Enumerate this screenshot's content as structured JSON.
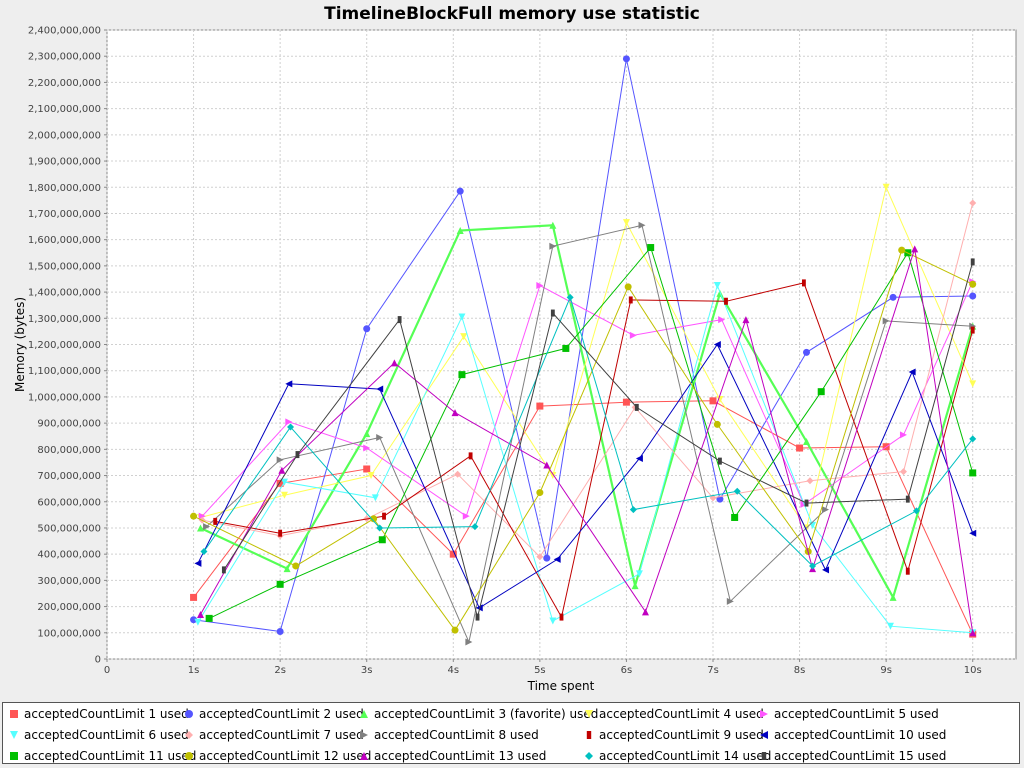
{
  "chart_data": {
    "type": "line",
    "title": "TimelineBlockFull memory use statistic",
    "xlabel": "Time spent",
    "ylabel": "Memory (bytes)",
    "xlim": [
      0,
      10.5
    ],
    "ylim": [
      0,
      2400000000
    ],
    "x_ticks": [
      "0",
      "1s",
      "2s",
      "3s",
      "4s",
      "5s",
      "6s",
      "7s",
      "8s",
      "9s",
      "10s"
    ],
    "y_ticks": [
      "0",
      "100,000,000",
      "200,000,000",
      "300,000,000",
      "400,000,000",
      "500,000,000",
      "600,000,000",
      "700,000,000",
      "800,000,000",
      "900,000,000",
      "1,000,000,000",
      "1,100,000,000",
      "1,200,000,000",
      "1,300,000,000",
      "1,400,000,000",
      "1,500,000,000",
      "1,600,000,000",
      "1,700,000,000",
      "1,800,000,000",
      "1,900,000,000",
      "2,000,000,000",
      "2,100,000,000",
      "2,200,000,000",
      "2,300,000,000",
      "2,400,000,000"
    ],
    "grid": true,
    "legend_position": "bottom",
    "series": [
      {
        "name": "acceptedCountLimit 1 used",
        "color": "#ff5555",
        "shape": "square",
        "x": [
          1.0,
          2.0,
          3.0,
          4.0,
          5.0,
          6.0,
          7.0,
          8.0,
          9.0,
          10.0
        ],
        "y": [
          235000000,
          670000000,
          725000000,
          400000000,
          965000000,
          980000000,
          985000000,
          805000000,
          810000000,
          95000000
        ]
      },
      {
        "name": "acceptedCountLimit 2 used",
        "color": "#5555ff",
        "shape": "circle",
        "x": [
          1.0,
          2.0,
          3.0,
          4.08,
          5.08,
          6.0,
          7.08,
          8.08,
          9.08,
          10.0
        ],
        "y": [
          150000000,
          105000000,
          1260000000,
          1785000000,
          385000000,
          2290000000,
          610000000,
          1170000000,
          1380000000,
          1385000000
        ]
      },
      {
        "name": "acceptedCountLimit 3 (favorite) used",
        "color": "#55ff55",
        "shape": "triangle-up",
        "x": [
          1.08,
          2.08,
          3.0,
          4.08,
          5.15,
          6.1,
          7.08,
          8.08,
          9.08,
          10.0
        ],
        "y": [
          500000000,
          345000000,
          860000000,
          1635000000,
          1655000000,
          280000000,
          1395000000,
          830000000,
          235000000,
          1270000000
        ]
      },
      {
        "name": "acceptedCountLimit 4 used",
        "color": "#ffff55",
        "shape": "triangle-down",
        "x": [
          1.08,
          2.05,
          3.05,
          4.12,
          5.15,
          6.0,
          7.08,
          8.08,
          9.0,
          10.0
        ],
        "y": [
          540000000,
          625000000,
          700000000,
          1230000000,
          700000000,
          1665000000,
          990000000,
          500000000,
          1800000000,
          1050000000
        ]
      },
      {
        "name": "acceptedCountLimit 5 used",
        "color": "#ff55ff",
        "shape": "triangle-right",
        "x": [
          1.1,
          2.1,
          3.0,
          4.15,
          5.0,
          6.08,
          7.1,
          8.05,
          9.2,
          10.0
        ],
        "y": [
          545000000,
          905000000,
          805000000,
          545000000,
          1425000000,
          1235000000,
          1295000000,
          590000000,
          855000000,
          1440000000
        ]
      },
      {
        "name": "acceptedCountLimit 6 used",
        "color": "#55ffff",
        "shape": "triangle-down",
        "x": [
          1.05,
          2.05,
          3.1,
          4.1,
          5.15,
          6.15,
          7.05,
          8.15,
          9.05,
          10.0
        ],
        "y": [
          140000000,
          675000000,
          615000000,
          1305000000,
          145000000,
          325000000,
          1425000000,
          510000000,
          125000000,
          100000000
        ]
      },
      {
        "name": "acceptedCountLimit 7 used",
        "color": "#ffafaf",
        "shape": "diamond",
        "x": [
          1.1,
          2.0,
          3.0,
          4.05,
          5.0,
          6.1,
          7.0,
          8.12,
          9.2,
          10.0
        ],
        "y": [
          530000000,
          470000000,
          535000000,
          705000000,
          390000000,
          960000000,
          615000000,
          680000000,
          715000000,
          1740000000
        ]
      },
      {
        "name": "acceptedCountLimit 8 used",
        "color": "#808080",
        "shape": "triangle-right",
        "x": [
          1.15,
          2.0,
          3.15,
          4.18,
          5.15,
          6.18,
          7.2,
          8.3,
          9.0,
          10.0
        ],
        "y": [
          505000000,
          760000000,
          845000000,
          65000000,
          1575000000,
          1655000000,
          220000000,
          570000000,
          1290000000,
          1270000000
        ]
      },
      {
        "name": "acceptedCountLimit 9 used",
        "color": "#c00000",
        "shape": "bar",
        "x": [
          1.25,
          2.0,
          3.2,
          4.2,
          5.25,
          6.05,
          7.15,
          8.05,
          9.25,
          10.0
        ],
        "y": [
          525000000,
          480000000,
          545000000,
          775000000,
          160000000,
          1370000000,
          1365000000,
          1435000000,
          335000000,
          1255000000
        ]
      },
      {
        "name": "acceptedCountLimit 10 used",
        "color": "#0000c0",
        "shape": "triangle-left",
        "x": [
          1.05,
          2.1,
          3.15,
          4.3,
          5.2,
          6.15,
          7.05,
          8.3,
          9.3,
          10.0
        ],
        "y": [
          365000000,
          1050000000,
          1030000000,
          195000000,
          380000000,
          765000000,
          1200000000,
          340000000,
          1095000000,
          480000000
        ]
      },
      {
        "name": "acceptedCountLimit 11 used",
        "color": "#00c000",
        "shape": "square",
        "x": [
          1.18,
          2.0,
          3.18,
          4.1,
          5.3,
          6.28,
          7.25,
          8.25,
          9.25,
          10.0
        ],
        "y": [
          155000000,
          285000000,
          455000000,
          1085000000,
          1185000000,
          1570000000,
          540000000,
          1020000000,
          1550000000,
          710000000
        ]
      },
      {
        "name": "acceptedCountLimit 12 used",
        "color": "#c0c000",
        "shape": "circle",
        "x": [
          1.0,
          2.18,
          3.08,
          4.02,
          5.0,
          6.02,
          7.05,
          8.1,
          9.18,
          10.0
        ],
        "y": [
          545000000,
          355000000,
          535000000,
          110000000,
          635000000,
          1420000000,
          895000000,
          410000000,
          1560000000,
          1430000000
        ]
      },
      {
        "name": "acceptedCountLimit 13 used",
        "color": "#c000c0",
        "shape": "triangle-up",
        "x": [
          1.08,
          2.02,
          3.32,
          4.02,
          5.08,
          6.22,
          7.38,
          8.15,
          9.33,
          10.0
        ],
        "y": [
          170000000,
          720000000,
          1130000000,
          940000000,
          740000000,
          180000000,
          1295000000,
          345000000,
          1565000000,
          100000000
        ]
      },
      {
        "name": "acceptedCountLimit 14 used",
        "color": "#00c0c0",
        "shape": "diamond",
        "x": [
          1.12,
          2.12,
          3.15,
          4.25,
          5.35,
          6.08,
          7.28,
          8.15,
          9.35,
          10.0
        ],
        "y": [
          410000000,
          885000000,
          500000000,
          505000000,
          1380000000,
          570000000,
          640000000,
          355000000,
          565000000,
          840000000
        ]
      },
      {
        "name": "acceptedCountLimit 15 used",
        "color": "#404040",
        "shape": "bar",
        "x": [
          1.35,
          2.2,
          3.38,
          4.28,
          5.15,
          6.12,
          7.08,
          8.08,
          9.25,
          10.0
        ],
        "y": [
          340000000,
          780000000,
          1295000000,
          160000000,
          1320000000,
          960000000,
          755000000,
          595000000,
          610000000,
          1515000000
        ]
      }
    ]
  }
}
